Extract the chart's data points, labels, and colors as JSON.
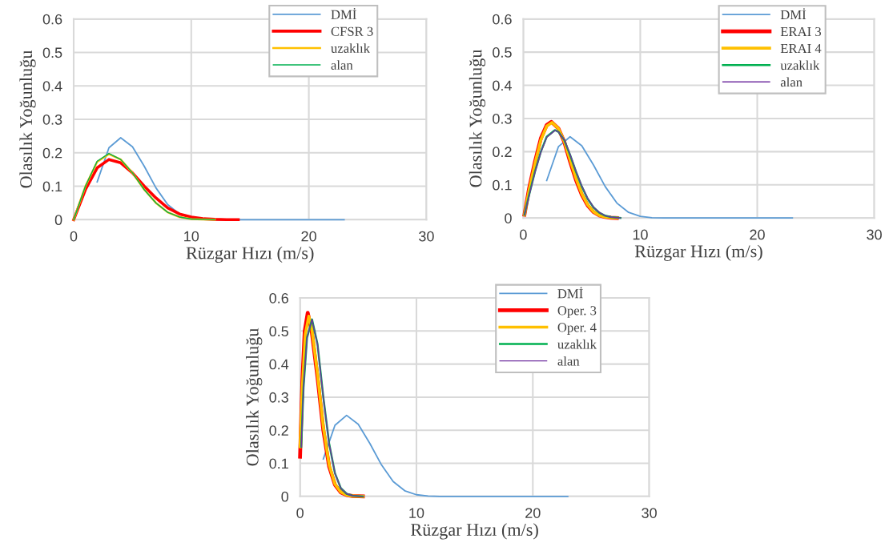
{
  "chart_data": [
    {
      "type": "line",
      "xlabel": "Rüzgar Hızı (m/s)",
      "ylabel": "Olasılık Yoğunluğu",
      "xlim": [
        0,
        30
      ],
      "xticks": [
        0,
        10,
        20,
        30
      ],
      "ylim": [
        0,
        0.6
      ],
      "yticks": [
        0,
        0.1,
        0.2,
        0.3,
        0.4,
        0.5,
        0.6
      ],
      "grid": true,
      "legend": "top right",
      "series": [
        {
          "name": "DMİ",
          "color": "#5b9bd5",
          "x": [
            2,
            3,
            4,
            5,
            6,
            7,
            8,
            9,
            10,
            11,
            12,
            13,
            14,
            15,
            16,
            17,
            18,
            19,
            20,
            21,
            22,
            23
          ],
          "values": [
            0.113,
            0.215,
            0.245,
            0.218,
            0.16,
            0.095,
            0.045,
            0.017,
            0.005,
            0.001,
            0,
            0,
            0,
            0,
            0,
            0,
            0,
            0,
            0,
            0,
            0,
            0
          ]
        },
        {
          "name": "CFSR 3",
          "color": "#ff0000",
          "x": [
            0,
            1,
            2,
            3,
            4,
            5,
            6,
            7,
            8,
            9,
            10,
            11,
            12,
            13,
            14
          ],
          "values": [
            0,
            0.09,
            0.155,
            0.18,
            0.17,
            0.14,
            0.1,
            0.065,
            0.035,
            0.017,
            0.008,
            0.003,
            0.001,
            0,
            0
          ]
        },
        {
          "name": "uzaklık",
          "color": "#ffc000",
          "x": [
            0,
            1,
            2,
            3,
            4,
            5,
            6,
            7,
            8,
            9,
            10,
            11,
            12
          ],
          "values": [
            0,
            0.1,
            0.173,
            0.196,
            0.18,
            0.14,
            0.09,
            0.05,
            0.022,
            0.008,
            0.002,
            0.001,
            0
          ]
        },
        {
          "name": "alan",
          "color": "#00b050",
          "x": [
            0,
            1,
            2,
            3,
            4,
            5,
            6,
            7,
            8,
            9,
            10,
            11,
            12
          ],
          "values": [
            0,
            0.1,
            0.175,
            0.198,
            0.18,
            0.14,
            0.09,
            0.05,
            0.022,
            0.008,
            0.002,
            0.001,
            0
          ]
        }
      ]
    },
    {
      "type": "line",
      "xlabel": "Rüzgar Hızı (m/s)",
      "ylabel": "Olasılık Yoğunluğu",
      "xlim": [
        0,
        30
      ],
      "xticks": [
        0,
        10,
        20,
        30
      ],
      "ylim": [
        0,
        0.6
      ],
      "yticks": [
        0,
        0.1,
        0.2,
        0.3,
        0.4,
        0.5,
        0.6
      ],
      "grid": true,
      "legend": "top right",
      "series": [
        {
          "name": "DMİ",
          "color": "#5b9bd5",
          "x": [
            2,
            3,
            4,
            5,
            6,
            7,
            8,
            9,
            10,
            11,
            12,
            13,
            14,
            15,
            16,
            17,
            18,
            19,
            20,
            21,
            22,
            23
          ],
          "values": [
            0.113,
            0.215,
            0.245,
            0.218,
            0.16,
            0.095,
            0.045,
            0.017,
            0.005,
            0.001,
            0,
            0,
            0,
            0,
            0,
            0,
            0,
            0,
            0,
            0,
            0,
            0
          ]
        },
        {
          "name": "ERAI 3",
          "color": "#ff0000",
          "x": [
            0.1,
            0.5,
            1,
            1.5,
            2,
            2.4,
            3,
            3.5,
            4,
            4.5,
            5,
            5.5,
            6,
            6.5,
            7,
            7.5,
            8
          ],
          "values": [
            0.01,
            0.09,
            0.17,
            0.24,
            0.28,
            0.29,
            0.27,
            0.23,
            0.17,
            0.115,
            0.07,
            0.038,
            0.018,
            0.008,
            0.003,
            0.001,
            0
          ]
        },
        {
          "name": "ERAI 4",
          "color": "#ffc000",
          "x": [
            0.1,
            0.5,
            1,
            1.5,
            2,
            2.45,
            3,
            3.5,
            4,
            4.5,
            5,
            5.5,
            6,
            6.5,
            7,
            7.5,
            8
          ],
          "values": [
            0.01,
            0.085,
            0.165,
            0.235,
            0.277,
            0.288,
            0.27,
            0.232,
            0.175,
            0.12,
            0.073,
            0.04,
            0.019,
            0.008,
            0.003,
            0.001,
            0
          ]
        },
        {
          "name": "uzaklık",
          "color": "#00b050",
          "x": [
            0.1,
            0.5,
            1,
            1.5,
            2,
            2.7,
            3,
            3.5,
            4,
            4.5,
            5,
            5.5,
            6,
            6.5,
            7,
            7.5,
            8,
            8.3
          ],
          "values": [
            0.01,
            0.07,
            0.14,
            0.2,
            0.245,
            0.265,
            0.26,
            0.235,
            0.19,
            0.14,
            0.095,
            0.058,
            0.032,
            0.016,
            0.007,
            0.003,
            0.001,
            0
          ]
        },
        {
          "name": "alan",
          "color": "#7030a0",
          "x": [
            0.1,
            0.5,
            1,
            1.5,
            2,
            2.7,
            3,
            3.5,
            4,
            4.5,
            5,
            5.5,
            6,
            6.5,
            7,
            7.5,
            8,
            8.3
          ],
          "values": [
            0.01,
            0.068,
            0.138,
            0.198,
            0.243,
            0.264,
            0.26,
            0.236,
            0.192,
            0.142,
            0.097,
            0.06,
            0.033,
            0.017,
            0.007,
            0.003,
            0.001,
            0
          ]
        }
      ]
    },
    {
      "type": "line",
      "xlabel": "Rüzgar Hızı (m/s)",
      "ylabel": "Olasılık Yoğunluğu",
      "xlim": [
        0,
        30
      ],
      "xticks": [
        0,
        10,
        20,
        30
      ],
      "ylim": [
        0,
        0.6
      ],
      "yticks": [
        0,
        0.1,
        0.2,
        0.3,
        0.4,
        0.5,
        0.6
      ],
      "grid": true,
      "legend": "top right",
      "series": [
        {
          "name": "DMİ",
          "color": "#5b9bd5",
          "x": [
            2,
            3,
            4,
            5,
            6,
            7,
            8,
            9,
            10,
            11,
            12,
            13,
            14,
            15,
            16,
            17,
            18,
            19,
            20,
            21,
            22,
            23
          ],
          "values": [
            0.113,
            0.215,
            0.245,
            0.218,
            0.16,
            0.095,
            0.045,
            0.017,
            0.005,
            0.001,
            0,
            0,
            0,
            0,
            0,
            0,
            0,
            0,
            0,
            0,
            0,
            0
          ]
        },
        {
          "name": "Oper. 3",
          "color": "#ff0000",
          "x": [
            0,
            0.2,
            0.4,
            0.66,
            1,
            1.5,
            2,
            2.5,
            3,
            3.5,
            4,
            4.5,
            5.4
          ],
          "values": [
            0.12,
            0.35,
            0.5,
            0.555,
            0.5,
            0.36,
            0.2,
            0.09,
            0.035,
            0.012,
            0.004,
            0.001,
            0
          ]
        },
        {
          "name": "Oper. 4",
          "color": "#ffc000",
          "x": [
            0,
            0.2,
            0.45,
            0.75,
            1,
            1.5,
            2,
            2.5,
            3,
            3.5,
            4,
            4.5,
            5.4
          ],
          "values": [
            0.15,
            0.33,
            0.49,
            0.545,
            0.51,
            0.37,
            0.21,
            0.095,
            0.037,
            0.013,
            0.004,
            0.001,
            0
          ]
        },
        {
          "name": "uzaklık",
          "color": "#00b050",
          "x": [
            0.1,
            0.3,
            0.6,
            1.03,
            1.5,
            2,
            2.5,
            3,
            3.5,
            4,
            4.5,
            5.4
          ],
          "values": [
            0.15,
            0.33,
            0.48,
            0.535,
            0.46,
            0.3,
            0.16,
            0.07,
            0.025,
            0.008,
            0.002,
            0
          ]
        },
        {
          "name": "alan",
          "color": "#7030a0",
          "x": [
            0.1,
            0.3,
            0.6,
            1.03,
            1.5,
            2,
            2.5,
            3,
            3.5,
            4,
            4.5,
            5.4
          ],
          "values": [
            0.15,
            0.33,
            0.48,
            0.535,
            0.46,
            0.3,
            0.16,
            0.07,
            0.025,
            0.008,
            0.002,
            0
          ]
        }
      ]
    }
  ]
}
